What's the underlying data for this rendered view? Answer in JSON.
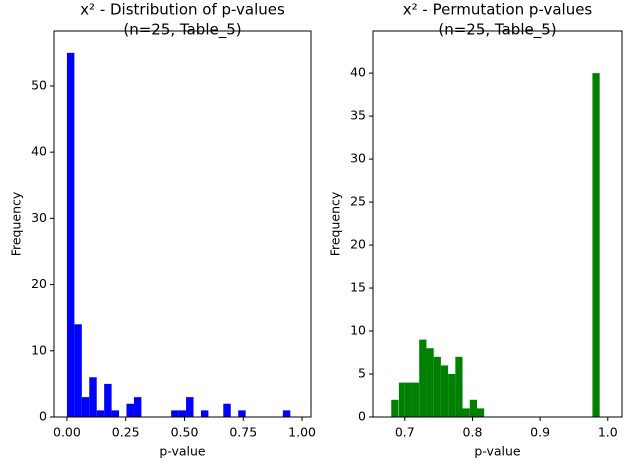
{
  "chart_data": [
    {
      "type": "histogram",
      "title": [
        "x² - Distribution of p-values",
        "(n=25, Table_5)"
      ],
      "xlabel": "p-value",
      "ylabel": "Frequency",
      "color": "#0000ff",
      "bins": [
        0.0,
        0.0317,
        0.0633,
        0.095,
        0.1267,
        0.1583,
        0.19,
        0.2217,
        0.2533,
        0.285,
        0.3167,
        0.3483,
        0.38,
        0.4117,
        0.4433,
        0.475,
        0.5067,
        0.5383,
        0.57,
        0.6017,
        0.6333,
        0.665,
        0.6967,
        0.7283,
        0.76,
        0.7917,
        0.8233,
        0.855,
        0.8867,
        0.9183,
        0.95
      ],
      "values": [
        55,
        14,
        3,
        6,
        1,
        5,
        1,
        0,
        2,
        3,
        0,
        0,
        0,
        0,
        1,
        1,
        3,
        0,
        1,
        0,
        0,
        2,
        0,
        1,
        0,
        0,
        0,
        0,
        0,
        1
      ],
      "xlim": [
        -0.055,
        1.038
      ],
      "xticks": [
        {
          "value": 0,
          "label": "0.00"
        },
        {
          "value": 0.25,
          "label": "0.25"
        },
        {
          "value": 0.5,
          "label": "0.50"
        },
        {
          "value": 0.75,
          "label": "0.75"
        },
        {
          "value": 1,
          "label": "1.00"
        }
      ],
      "ylim": [
        0,
        58.3
      ],
      "yticks": [
        0,
        10,
        20,
        30,
        40,
        50
      ]
    },
    {
      "type": "histogram",
      "title": [
        "x² - Permutation p-values",
        "(n=25, Table_5)"
      ],
      "xlabel": "p-value",
      "ylabel": "Frequency",
      "color": "#008000",
      "bins": [
        0.68,
        0.6907,
        0.6913,
        0.7,
        0.7107,
        0.7213,
        0.732,
        0.7427,
        0.7533,
        0.764,
        0.7747,
        0.7853,
        0.796,
        0.8067,
        0.8173,
        0.828,
        0.8387,
        0.8493,
        0.86,
        0.8707,
        0.8813,
        0.892,
        0.9027,
        0.9133,
        0.924,
        0.9347,
        0.9453,
        0.956,
        0.9667,
        0.9773,
        0.988
      ],
      "values": [
        2,
        0,
        4,
        4,
        4,
        9,
        8,
        7,
        6,
        5,
        7,
        1,
        2,
        1,
        0,
        0,
        0,
        0,
        0,
        0,
        0,
        0,
        0,
        0,
        0,
        0,
        0,
        0,
        0,
        40
      ],
      "xlim": [
        0.653,
        1.021
      ],
      "xticks": [
        0.7,
        0.8,
        0.9,
        {
          "value": 1,
          "label": "1.0"
        }
      ],
      "ylim": [
        0,
        44.9
      ],
      "yticks": [
        0,
        5,
        10,
        15,
        20,
        25,
        30,
        35,
        40
      ]
    }
  ]
}
